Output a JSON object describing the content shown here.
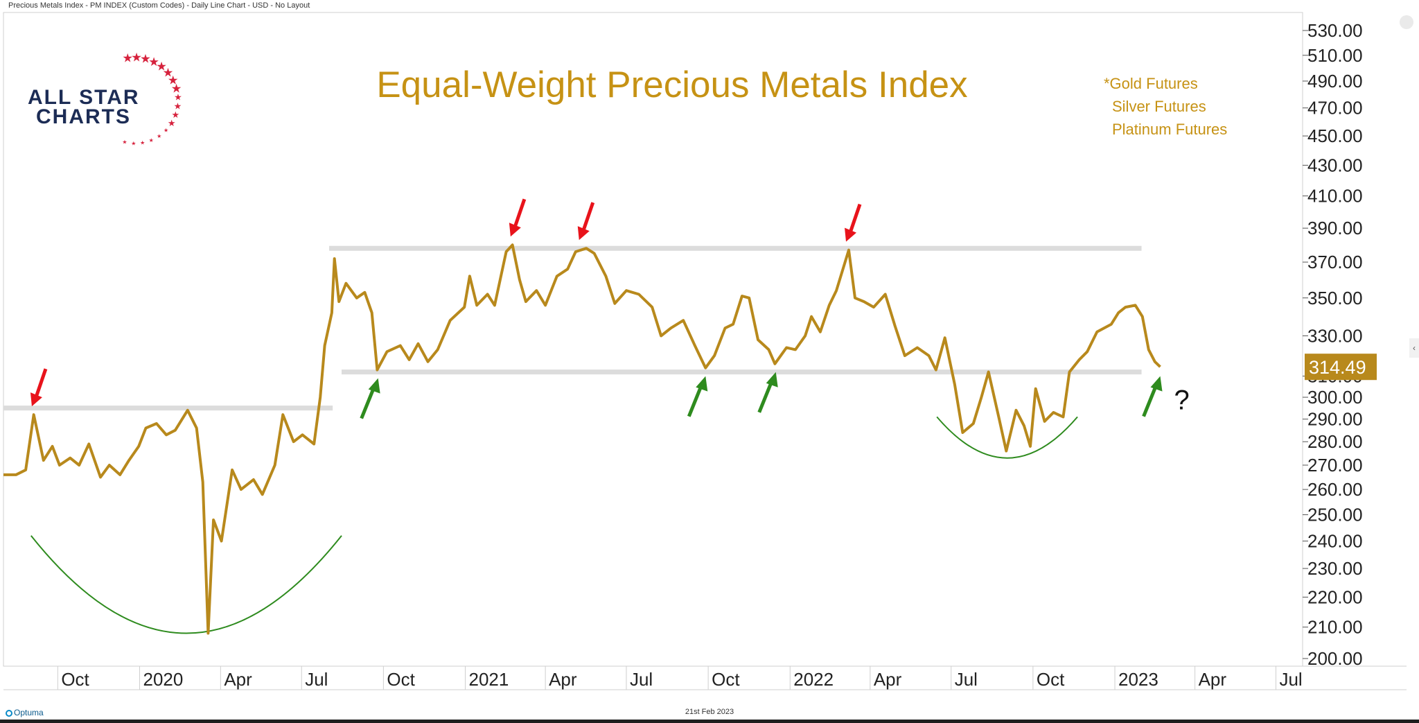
{
  "header": "Precious Metals Index - PM INDEX (Custom Codes) - Daily Line Chart - USD - No Layout",
  "footer": {
    "date": "21st Feb 2023",
    "brand": "Optuma"
  },
  "logo": {
    "line1": "ALL STAR",
    "line2": "CHARTS"
  },
  "colors": {
    "line": "#b8891c",
    "title": "#c69214",
    "support_band": "#dcdcdc",
    "up_arrow": "#2e8b1e",
    "down_arrow": "#e8131b",
    "arc": "#2e8b1e",
    "price_tag": "#b8891c",
    "logo_navy": "#1c2c55",
    "logo_red": "#d6223d"
  },
  "chart_data": {
    "type": "line",
    "title": "Equal-Weight Precious Metals Index",
    "legend": [
      "*Gold Futures",
      "Silver Futures",
      "Platinum Futures"
    ],
    "legend_position": "top-right",
    "last_value_label": "314.49",
    "question_mark": "?",
    "y_axis": {
      "scale": "log",
      "min": 200,
      "max": 530,
      "ticks": [
        "530.00",
        "510.00",
        "490.00",
        "470.00",
        "450.00",
        "430.00",
        "410.00",
        "390.00",
        "370.00",
        "350.00",
        "330.00",
        "310.00",
        "300.00",
        "290.00",
        "280.00",
        "270.00",
        "260.00",
        "250.00",
        "240.00",
        "230.00",
        "220.00",
        "210.00",
        "200.00"
      ]
    },
    "x_axis": {
      "range": [
        "2019-08-01",
        "2023-07-31"
      ],
      "ticks": [
        {
          "label": "Oct",
          "date": "2019-10-01"
        },
        {
          "label": "2020",
          "date": "2020-01-01"
        },
        {
          "label": "Apr",
          "date": "2020-04-01"
        },
        {
          "label": "Jul",
          "date": "2020-07-01"
        },
        {
          "label": "Oct",
          "date": "2020-10-01"
        },
        {
          "label": "2021",
          "date": "2021-01-01"
        },
        {
          "label": "Apr",
          "date": "2021-04-01"
        },
        {
          "label": "Jul",
          "date": "2021-07-01"
        },
        {
          "label": "Oct",
          "date": "2021-10-01"
        },
        {
          "label": "2022",
          "date": "2022-01-01"
        },
        {
          "label": "Apr",
          "date": "2022-04-01"
        },
        {
          "label": "Jul",
          "date": "2022-07-01"
        },
        {
          "label": "Oct",
          "date": "2022-10-01"
        },
        {
          "label": "2023",
          "date": "2023-01-01"
        },
        {
          "label": "Apr",
          "date": "2023-04-01"
        },
        {
          "label": "Jul",
          "date": "2023-07-01"
        }
      ]
    },
    "series": [
      {
        "points": [
          [
            "2019-08-01",
            266
          ],
          [
            "2019-08-15",
            266
          ],
          [
            "2019-08-26",
            268
          ],
          [
            "2019-09-04",
            292
          ],
          [
            "2019-09-15",
            272
          ],
          [
            "2019-09-25",
            278
          ],
          [
            "2019-10-03",
            270
          ],
          [
            "2019-10-15",
            273
          ],
          [
            "2019-10-25",
            270
          ],
          [
            "2019-11-05",
            279
          ],
          [
            "2019-11-18",
            265
          ],
          [
            "2019-11-28",
            270
          ],
          [
            "2019-12-10",
            266
          ],
          [
            "2019-12-20",
            272
          ],
          [
            "2019-12-31",
            278
          ],
          [
            "2020-01-08",
            286
          ],
          [
            "2020-01-20",
            288
          ],
          [
            "2020-01-31",
            283
          ],
          [
            "2020-02-10",
            285
          ],
          [
            "2020-02-24",
            294
          ],
          [
            "2020-03-05",
            286
          ],
          [
            "2020-03-12",
            263
          ],
          [
            "2020-03-18",
            208
          ],
          [
            "2020-03-24",
            248
          ],
          [
            "2020-04-02",
            240
          ],
          [
            "2020-04-14",
            268
          ],
          [
            "2020-04-24",
            260
          ],
          [
            "2020-05-08",
            264
          ],
          [
            "2020-05-18",
            258
          ],
          [
            "2020-06-01",
            270
          ],
          [
            "2020-06-10",
            292
          ],
          [
            "2020-06-22",
            280
          ],
          [
            "2020-07-02",
            283
          ],
          [
            "2020-07-15",
            279
          ],
          [
            "2020-07-22",
            300
          ],
          [
            "2020-07-27",
            325
          ],
          [
            "2020-08-04",
            342
          ],
          [
            "2020-08-07",
            372
          ],
          [
            "2020-08-12",
            348
          ],
          [
            "2020-08-20",
            358
          ],
          [
            "2020-09-01",
            350
          ],
          [
            "2020-09-10",
            353
          ],
          [
            "2020-09-18",
            342
          ],
          [
            "2020-09-24",
            313
          ],
          [
            "2020-10-05",
            322
          ],
          [
            "2020-10-20",
            325
          ],
          [
            "2020-10-30",
            318
          ],
          [
            "2020-11-09",
            326
          ],
          [
            "2020-11-20",
            317
          ],
          [
            "2020-12-01",
            323
          ],
          [
            "2020-12-15",
            338
          ],
          [
            "2020-12-31",
            345
          ],
          [
            "2021-01-06",
            362
          ],
          [
            "2021-01-14",
            346
          ],
          [
            "2021-01-26",
            352
          ],
          [
            "2021-02-03",
            346
          ],
          [
            "2021-02-16",
            376
          ],
          [
            "2021-02-23",
            380
          ],
          [
            "2021-03-03",
            360
          ],
          [
            "2021-03-10",
            348
          ],
          [
            "2021-03-22",
            354
          ],
          [
            "2021-04-01",
            346
          ],
          [
            "2021-04-14",
            362
          ],
          [
            "2021-04-26",
            366
          ],
          [
            "2021-05-05",
            376
          ],
          [
            "2021-05-17",
            378
          ],
          [
            "2021-05-26",
            375
          ],
          [
            "2021-06-08",
            362
          ],
          [
            "2021-06-18",
            347
          ],
          [
            "2021-07-01",
            354
          ],
          [
            "2021-07-15",
            352
          ],
          [
            "2021-07-30",
            345
          ],
          [
            "2021-08-09",
            330
          ],
          [
            "2021-08-20",
            334
          ],
          [
            "2021-09-03",
            338
          ],
          [
            "2021-09-16",
            325
          ],
          [
            "2021-09-28",
            314
          ],
          [
            "2021-10-08",
            320
          ],
          [
            "2021-10-20",
            334
          ],
          [
            "2021-10-29",
            336
          ],
          [
            "2021-11-08",
            351
          ],
          [
            "2021-11-16",
            350
          ],
          [
            "2021-11-26",
            328
          ],
          [
            "2021-12-08",
            323
          ],
          [
            "2021-12-15",
            316
          ],
          [
            "2021-12-28",
            324
          ],
          [
            "2022-01-07",
            323
          ],
          [
            "2022-01-18",
            330
          ],
          [
            "2022-01-25",
            340
          ],
          [
            "2022-02-04",
            332
          ],
          [
            "2022-02-14",
            346
          ],
          [
            "2022-02-22",
            354
          ],
          [
            "2022-03-08",
            377
          ],
          [
            "2022-03-15",
            350
          ],
          [
            "2022-03-25",
            348
          ],
          [
            "2022-04-05",
            345
          ],
          [
            "2022-04-18",
            352
          ],
          [
            "2022-04-29",
            335
          ],
          [
            "2022-05-10",
            320
          ],
          [
            "2022-05-24",
            324
          ],
          [
            "2022-06-06",
            320
          ],
          [
            "2022-06-14",
            313
          ],
          [
            "2022-06-24",
            329
          ],
          [
            "2022-07-05",
            306
          ],
          [
            "2022-07-14",
            284
          ],
          [
            "2022-07-26",
            288
          ],
          [
            "2022-08-04",
            300
          ],
          [
            "2022-08-12",
            312
          ],
          [
            "2022-08-24",
            290
          ],
          [
            "2022-09-01",
            276
          ],
          [
            "2022-09-12",
            294
          ],
          [
            "2022-09-21",
            287
          ],
          [
            "2022-09-28",
            278
          ],
          [
            "2022-10-04",
            304
          ],
          [
            "2022-10-14",
            289
          ],
          [
            "2022-10-24",
            293
          ],
          [
            "2022-11-04",
            291
          ],
          [
            "2022-11-11",
            312
          ],
          [
            "2022-11-22",
            318
          ],
          [
            "2022-12-01",
            322
          ],
          [
            "2022-12-12",
            332
          ],
          [
            "2022-12-28",
            336
          ],
          [
            "2023-01-05",
            342
          ],
          [
            "2023-01-13",
            345
          ],
          [
            "2023-01-24",
            346
          ],
          [
            "2023-02-01",
            340
          ],
          [
            "2023-02-08",
            323
          ],
          [
            "2023-02-15",
            317
          ],
          [
            "2023-02-21",
            314.49
          ]
        ]
      }
    ],
    "resistance": {
      "value": 378,
      "from": "2020-08-01",
      "to": "2023-01-31"
    },
    "support": {
      "value": 312,
      "from": "2020-08-15",
      "to": "2023-01-31"
    },
    "support_2019": {
      "value": 295,
      "from": "2019-08-01",
      "to": "2020-08-05"
    },
    "down_arrows": [
      {
        "date": "2019-09-05",
        "value": 292
      },
      {
        "date": "2021-02-24",
        "value": 380
      },
      {
        "date": "2021-05-12",
        "value": 378
      },
      {
        "date": "2022-03-08",
        "value": 377
      }
    ],
    "up_arrows": [
      {
        "date": "2020-09-25",
        "value": 313
      },
      {
        "date": "2021-09-28",
        "value": 314
      },
      {
        "date": "2021-12-16",
        "value": 316
      },
      {
        "date": "2023-02-21",
        "value": 314
      }
    ],
    "base_arcs": [
      {
        "from": "2019-09-01",
        "to": "2020-08-15",
        "top": 242,
        "bottom": 208
      },
      {
        "from": "2022-06-15",
        "to": "2022-11-20",
        "top": 291,
        "bottom": 273
      }
    ]
  }
}
